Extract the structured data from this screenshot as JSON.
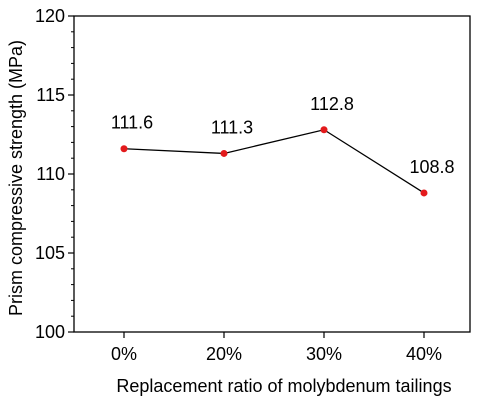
{
  "chart_data": {
    "type": "line",
    "categories": [
      "0%",
      "20%",
      "30%",
      "40%"
    ],
    "values": [
      111.6,
      111.3,
      112.8,
      108.8
    ],
    "data_labels": [
      "111.6",
      "111.3",
      "112.8",
      "108.8"
    ],
    "xlabel": "Replacement ratio of molybdenum tailings",
    "ylabel": "Prism compressive strength (MPa)",
    "ylim": [
      100,
      120
    ],
    "y_ticks": [
      100,
      105,
      110,
      115,
      120
    ],
    "y_minor_step": 1,
    "grid": false,
    "legend": "none",
    "colors": {
      "line": "#000000",
      "marker": "#e31a1c",
      "axis": "#000000"
    }
  }
}
